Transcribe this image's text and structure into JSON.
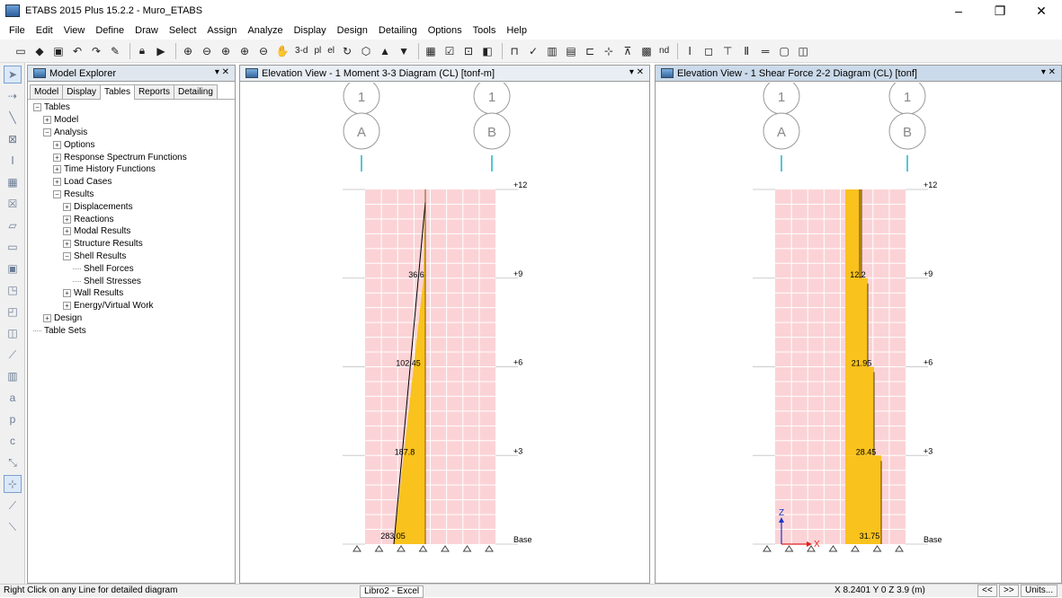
{
  "window": {
    "title": "ETABS 2015 Plus 15.2.2 - Muro_ETABS",
    "minimize": "–",
    "maximize": "❐",
    "close": "✕"
  },
  "menu": [
    "File",
    "Edit",
    "View",
    "Define",
    "Draw",
    "Select",
    "Assign",
    "Analyze",
    "Display",
    "Design",
    "Detailing",
    "Options",
    "Tools",
    "Help"
  ],
  "toolbar": {
    "view_3d": "3-d",
    "plan": "pl",
    "elev": "el",
    "nd": "nd"
  },
  "explorer": {
    "title": "Model Explorer",
    "pin": "▾ ✕",
    "tabs": [
      {
        "label": "Model",
        "active": false
      },
      {
        "label": "Display",
        "active": false
      },
      {
        "label": "Tables",
        "active": true
      },
      {
        "label": "Reports",
        "active": false
      },
      {
        "label": "Detailing",
        "active": false
      }
    ],
    "tree": [
      {
        "label": "Tables",
        "level": 0,
        "state": "-"
      },
      {
        "label": "Model",
        "level": 1,
        "state": "+"
      },
      {
        "label": "Analysis",
        "level": 1,
        "state": "-"
      },
      {
        "label": "Options",
        "level": 2,
        "state": "+"
      },
      {
        "label": "Response Spectrum Functions",
        "level": 2,
        "state": "+"
      },
      {
        "label": "Time History Functions",
        "level": 2,
        "state": "+"
      },
      {
        "label": "Load Cases",
        "level": 2,
        "state": "+"
      },
      {
        "label": "Results",
        "level": 2,
        "state": "-"
      },
      {
        "label": "Displacements",
        "level": 3,
        "state": "+"
      },
      {
        "label": "Reactions",
        "level": 3,
        "state": "+"
      },
      {
        "label": "Modal Results",
        "level": 3,
        "state": "+"
      },
      {
        "label": "Structure Results",
        "level": 3,
        "state": "+"
      },
      {
        "label": "Shell Results",
        "level": 3,
        "state": "-"
      },
      {
        "label": "Shell Forces",
        "level": 4,
        "state": "leaf"
      },
      {
        "label": "Shell Stresses",
        "level": 4,
        "state": "leaf"
      },
      {
        "label": "Wall Results",
        "level": 3,
        "state": "+"
      },
      {
        "label": "Energy/Virtual Work",
        "level": 3,
        "state": "+"
      },
      {
        "label": "Design",
        "level": 1,
        "state": "+"
      },
      {
        "label": "Table Sets",
        "level": 0,
        "state": "leaf"
      }
    ]
  },
  "view1": {
    "title": "Elevation View - 1   Moment 3-3 Diagram   (CL)  [tonf-m]",
    "controls": "▾ ✕",
    "grid_numbers": [
      "1",
      "1"
    ],
    "grid_letters": [
      "A",
      "B"
    ],
    "levels": [
      "+12",
      "+9",
      "+6",
      "+3",
      "Base"
    ],
    "values": [
      "36.6",
      "102.45",
      "187.8",
      "283.05"
    ],
    "fill_color": "#f9c21d",
    "wall_color": "#fbd3d6"
  },
  "view2": {
    "title": "Elevation View - 1   Shear Force 2-2 Diagram   (CL)  [tonf]",
    "controls": "▾ ✕",
    "grid_numbers": [
      "1",
      "1"
    ],
    "grid_letters": [
      "A",
      "B"
    ],
    "levels": [
      "+12",
      "+9",
      "+6",
      "+3",
      "Base"
    ],
    "values": [
      "12.2",
      "21.95",
      "28.45",
      "31.75"
    ],
    "axis_z": "Z",
    "axis_x": "X"
  },
  "status": {
    "left": "Right Click on any Line for detailed diagram",
    "task": "Libro2 - Excel",
    "coords": "X 8.2401  Y 0  Z 3.9 (m)",
    "prev": "<<",
    "next": ">>",
    "units": "Units..."
  }
}
